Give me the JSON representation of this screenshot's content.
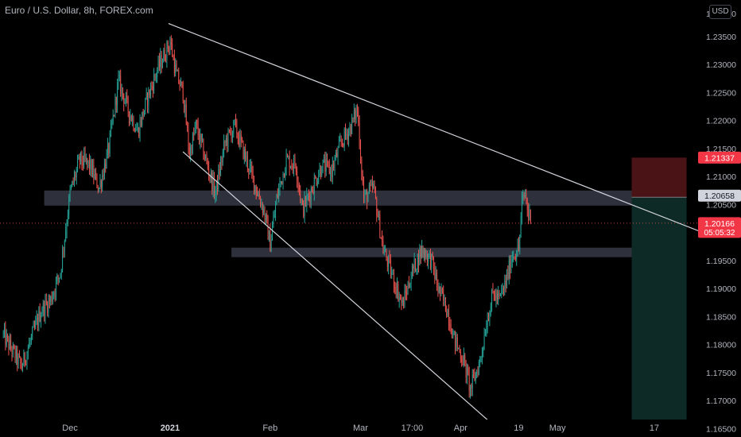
{
  "header": {
    "title": "Euro / U.S. Dollar, 8h, FOREX.com",
    "currency_button": "USD"
  },
  "colors": {
    "up": "#26a69a",
    "down": "#ef5350",
    "axis_text": "#b2b5be",
    "trendline": "#d1d4dc",
    "zone": "#363a45",
    "stop_zone": "#4a1416",
    "target_zone": "#0e2a26"
  },
  "chart_data": {
    "type": "candlestick",
    "title": "Euro / U.S. Dollar, 8h, FOREX.com",
    "y_axis": {
      "ticks": [
        1.165,
        1.17,
        1.175,
        1.18,
        1.185,
        1.19,
        1.195,
        1.2,
        1.205,
        1.21,
        1.215,
        1.22,
        1.225,
        1.23,
        1.235
      ],
      "tick_labels": [
        "1.16500",
        "1.17000",
        "1.17500",
        "1.18000",
        "1.18500",
        "1.19000",
        "1.19500",
        "1.20000",
        "1.20500",
        "1.21000",
        "1.21500",
        "1.22000",
        "1.22500",
        "1.23000",
        "1.23500"
      ],
      "top_label_partial": "1.24000",
      "range": [
        1.1635,
        1.2415
      ]
    },
    "x_axis": {
      "labels": [
        "Dec",
        "2021",
        "Feb",
        "Mar",
        "17:00",
        "Apr",
        "19",
        "May",
        "17"
      ],
      "label_days": [
        18,
        49,
        80,
        108,
        124,
        139,
        157,
        169,
        199
      ]
    },
    "price_labels": {
      "stop": "1.21337",
      "resistance": "1.20658",
      "last": "1.20166",
      "countdown": "05:05:32"
    },
    "levels": {
      "stop": 1.21337,
      "resistance": 1.20658,
      "last": 1.20166
    },
    "anchors_day_price": [
      [
        -3,
        1.182
      ],
      [
        0,
        1.179
      ],
      [
        3,
        1.176
      ],
      [
        6,
        1.181
      ],
      [
        9,
        1.186
      ],
      [
        12,
        1.188
      ],
      [
        15,
        1.193
      ],
      [
        18,
        1.207
      ],
      [
        21,
        1.213
      ],
      [
        24,
        1.212
      ],
      [
        27,
        1.208
      ],
      [
        30,
        1.215
      ],
      [
        33,
        1.227
      ],
      [
        36,
        1.222
      ],
      [
        39,
        1.218
      ],
      [
        42,
        1.224
      ],
      [
        45,
        1.229
      ],
      [
        49,
        1.234
      ],
      [
        51,
        1.228
      ],
      [
        53,
        1.225
      ],
      [
        55,
        1.214
      ],
      [
        57,
        1.219
      ],
      [
        60,
        1.213
      ],
      [
        63,
        1.207
      ],
      [
        66,
        1.216
      ],
      [
        69,
        1.219
      ],
      [
        72,
        1.214
      ],
      [
        75,
        1.209
      ],
      [
        78,
        1.204
      ],
      [
        80,
        1.198
      ],
      [
        82,
        1.206
      ],
      [
        85,
        1.213
      ],
      [
        88,
        1.212
      ],
      [
        90,
        1.204
      ],
      [
        93,
        1.208
      ],
      [
        96,
        1.212
      ],
      [
        99,
        1.211
      ],
      [
        102,
        1.216
      ],
      [
        105,
        1.219
      ],
      [
        107,
        1.222
      ],
      [
        109,
        1.206
      ],
      [
        112,
        1.208
      ],
      [
        115,
        1.197
      ],
      [
        118,
        1.192
      ],
      [
        121,
        1.187
      ],
      [
        124,
        1.193
      ],
      [
        127,
        1.197
      ],
      [
        130,
        1.195
      ],
      [
        132,
        1.19
      ],
      [
        135,
        1.186
      ],
      [
        137,
        1.181
      ],
      [
        140,
        1.177
      ],
      [
        142,
        1.172
      ],
      [
        145,
        1.177
      ],
      [
        147,
        1.184
      ],
      [
        149,
        1.189
      ],
      [
        151,
        1.188
      ],
      [
        153,
        1.191
      ],
      [
        155,
        1.196
      ],
      [
        157,
        1.197
      ],
      [
        158,
        1.205
      ],
      [
        159,
        1.207
      ],
      [
        160,
        1.203
      ],
      [
        161,
        1.2035
      ]
    ],
    "zones": [
      {
        "name": "resistance-zone",
        "x0": 10,
        "x1": 209,
        "y0": 1.2048,
        "y1": 1.2075
      },
      {
        "name": "support-zone",
        "x0": 68,
        "x1": 209,
        "y0": 1.1956,
        "y1": 1.1973
      }
    ],
    "trendlines": [
      {
        "name": "upper-trendline",
        "p1": [
          48.5,
          1.2373
        ],
        "p2": [
          222,
          1.1982
        ]
      },
      {
        "name": "lower-trendline",
        "p1": [
          53,
          1.2144
        ],
        "p2": [
          151,
          1.1647
        ]
      }
    ],
    "position": {
      "x0": 192,
      "x1": 209,
      "entry": 1.2063,
      "stop": 1.21337,
      "target": 1.1635
    }
  }
}
